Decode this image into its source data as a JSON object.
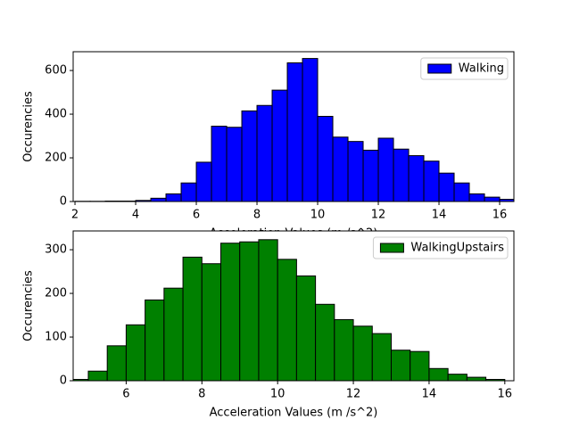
{
  "chart_data": [
    {
      "type": "histogram",
      "xlabel": "Acceleration Values (m /s^2)",
      "ylabel": "Occurencies",
      "series": [
        {
          "name": "Walking",
          "color": "#0000ff",
          "bins": [
            2.0,
            2.5,
            3.0,
            3.5,
            4.0,
            4.5,
            5.0,
            5.5,
            6.0,
            6.5,
            7.0,
            7.5,
            8.0,
            8.5,
            9.0,
            9.5,
            10.0,
            10.5,
            11.0,
            11.5,
            12.0,
            12.5,
            13.0,
            13.5,
            14.0,
            14.5,
            15.0,
            15.5,
            16.0,
            16.5
          ],
          "values": [
            1,
            1,
            2,
            2,
            5,
            15,
            35,
            85,
            180,
            345,
            340,
            415,
            440,
            510,
            635,
            655,
            390,
            295,
            275,
            235,
            290,
            240,
            210,
            185,
            130,
            85,
            35,
            20,
            10
          ]
        }
      ],
      "xlim": [
        1.94,
        16.47
      ],
      "xticks": [
        2,
        4,
        6,
        8,
        10,
        12,
        14,
        16
      ],
      "ylim": [
        0,
        686
      ],
      "yticks": [
        0,
        200,
        400,
        600
      ],
      "legend": "upper right"
    },
    {
      "type": "histogram",
      "xlabel": "Acceleration Values (m /s^2)",
      "ylabel": "Occurencies",
      "series": [
        {
          "name": "WalkingUpstairs",
          "color": "#008000",
          "bins": [
            4.6,
            5.0,
            5.5,
            6.0,
            6.5,
            7.0,
            7.5,
            8.0,
            8.5,
            9.0,
            9.5,
            10.0,
            10.5,
            11.0,
            11.5,
            12.0,
            12.5,
            13.0,
            13.5,
            14.0,
            14.5,
            15.0,
            15.5,
            16.0
          ],
          "values": [
            3,
            22,
            80,
            128,
            185,
            212,
            283,
            268,
            315,
            318,
            323,
            278,
            240,
            175,
            140,
            125,
            108,
            70,
            67,
            28,
            15,
            8,
            3
          ]
        }
      ],
      "xlim": [
        4.6,
        16.24
      ],
      "xticks": [
        6,
        8,
        10,
        12,
        14,
        16
      ],
      "ylim": [
        0,
        343
      ],
      "yticks": [
        0,
        100,
        200,
        300
      ],
      "legend": "upper right"
    }
  ]
}
